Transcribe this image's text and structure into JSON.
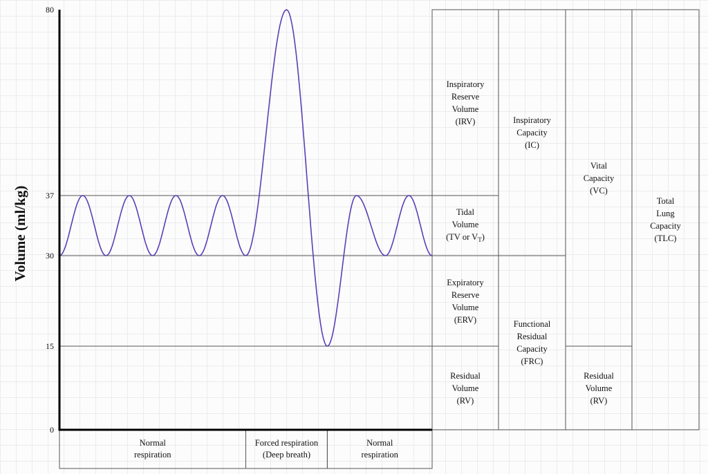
{
  "chart_data": {
    "type": "line",
    "title": "",
    "xlabel": "",
    "ylabel": "Volume (ml/kg)",
    "ylim": [
      0,
      80
    ],
    "yticks": [
      0,
      15,
      30,
      37,
      80
    ],
    "series": [
      {
        "points": [
          [
            0.0,
            30
          ],
          [
            0.5,
            37
          ],
          [
            1.0,
            30
          ],
          [
            1.5,
            37
          ],
          [
            2.0,
            30
          ],
          [
            2.5,
            37
          ],
          [
            3.0,
            30
          ],
          [
            3.5,
            37
          ],
          [
            4.0,
            30
          ],
          [
            4.875,
            80
          ],
          [
            5.75,
            15
          ],
          [
            6.375,
            37
          ],
          [
            7.0,
            30
          ],
          [
            7.5,
            37
          ],
          [
            8.0,
            30
          ]
        ]
      }
    ],
    "reference_lines": [
      37,
      30,
      15
    ],
    "phases": [
      {
        "label_lines": [
          "Normal",
          "respiration"
        ],
        "x_start": 0.0,
        "x_end": 4.0
      },
      {
        "label_lines": [
          "Forced respiration",
          "(Deep breath)"
        ],
        "x_start": 4.0,
        "x_end": 5.75
      },
      {
        "label_lines": [
          "Normal",
          "respiration"
        ],
        "x_start": 5.75,
        "x_end": 8.0
      }
    ],
    "volume_columns": [
      {
        "cells": [
          {
            "from": 37,
            "to": 80,
            "label_lines": [
              "Inspiratory",
              "Reserve",
              "Volume",
              "(IRV)"
            ]
          },
          {
            "from": 30,
            "to": 37,
            "label_lines": [
              "Tidal",
              "Volume"
            ],
            "label_special": {
              "prefix": "(TV or V",
              "sub": "T",
              "suffix": ")"
            }
          },
          {
            "from": 15,
            "to": 30,
            "label_lines": [
              "Expiratory",
              "Reserve",
              "Volume",
              "(ERV)"
            ]
          },
          {
            "from": 0,
            "to": 15,
            "label_lines": [
              "Residual",
              "Volume",
              "(RV)"
            ]
          }
        ]
      },
      {
        "cells": [
          {
            "from": 30,
            "to": 80,
            "label_lines": [
              "Inspiratory",
              "Capacity",
              "(IC)"
            ]
          },
          {
            "from": 0,
            "to": 30,
            "label_lines": [
              "Functional",
              "Residual",
              "Capacity",
              "(FRC)"
            ]
          }
        ]
      },
      {
        "cells": [
          {
            "from": 15,
            "to": 80,
            "label_lines": [
              "Vital",
              "Capacity",
              "(VC)"
            ]
          },
          {
            "from": 0,
            "to": 15,
            "label_lines": [
              "Residual",
              "Volume",
              "(RV)"
            ]
          }
        ]
      },
      {
        "cells": [
          {
            "from": 0,
            "to": 80,
            "label_lines": [
              "Total",
              "Lung",
              "Capacity",
              "(TLC)"
            ]
          }
        ]
      }
    ],
    "colors": {
      "curve": "#5b3fb5",
      "lines": "#555555",
      "axis": "#000000"
    }
  }
}
